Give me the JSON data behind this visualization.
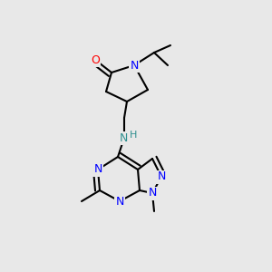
{
  "bg_color": "#e8e8e8",
  "atom_colors": {
    "N": "#0000ff",
    "O": "#ff0000",
    "NH": "#2f8f8f",
    "C": "#000000"
  },
  "bond_color": "#000000",
  "bond_lw": 1.5,
  "font_size": 9
}
